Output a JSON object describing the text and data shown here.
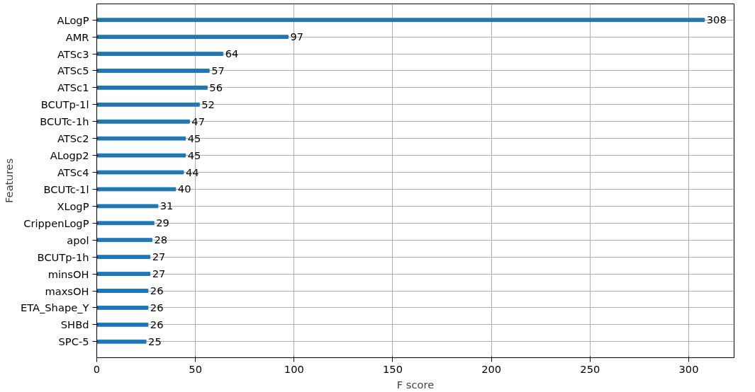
{
  "chart_data": {
    "type": "bar",
    "orientation": "horizontal",
    "xlabel": "F score",
    "ylabel": "Features",
    "categories": [
      "ALogP",
      "AMR",
      "ATSc3",
      "ATSc5",
      "ATSc1",
      "BCUTp-1l",
      "BCUTc-1h",
      "ATSc2",
      "ALogp2",
      "ATSc4",
      "BCUTc-1l",
      "XLogP",
      "CrippenLogP",
      "apol",
      "BCUTp-1h",
      "minsOH",
      "maxsOH",
      "ETA_Shape_Y",
      "SHBd",
      "SPC-5"
    ],
    "values": [
      308,
      97,
      64,
      57,
      56,
      52,
      47,
      45,
      45,
      44,
      40,
      31,
      29,
      28,
      27,
      27,
      26,
      26,
      26,
      25
    ],
    "color": "#1f77b4",
    "xlim": [
      0,
      323
    ],
    "xticks": [
      0,
      50,
      100,
      150,
      200,
      250,
      300
    ],
    "grid": true,
    "data_labels": true
  }
}
